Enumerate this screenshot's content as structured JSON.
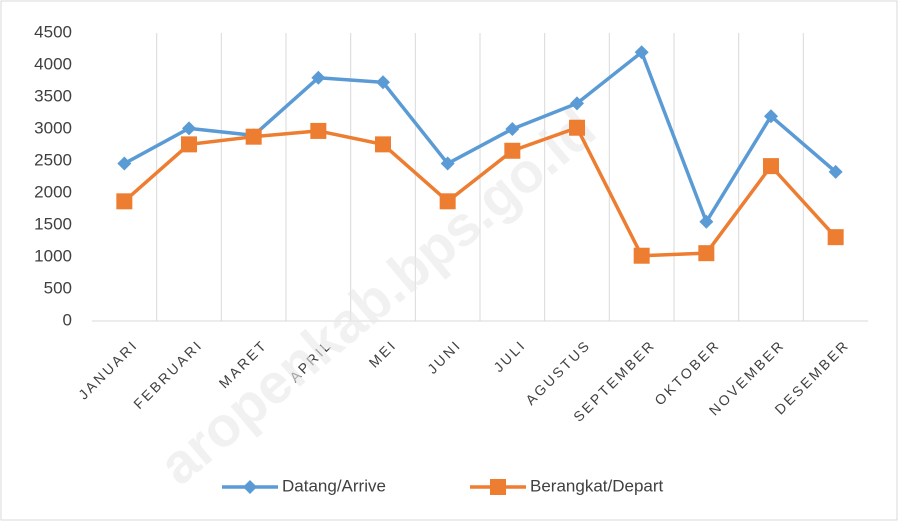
{
  "chart_data": {
    "type": "line",
    "categories": [
      "JANUARI",
      "FEBRUARI",
      "MARET",
      "APRIL",
      "MEI",
      "JUNI",
      "JULI",
      "AGUSTUS",
      "SEPTEMBER",
      "OKTOBER",
      "NOVEMBER",
      "DESEMBER"
    ],
    "series": [
      {
        "name": "Datang/Arrive",
        "color": "#5b9bd5",
        "marker": "diamond",
        "values": [
          2460,
          3010,
          2900,
          3800,
          3730,
          2460,
          3000,
          3400,
          4200,
          1550,
          3200,
          2330
        ]
      },
      {
        "name": "Berangkat/Depart",
        "color": "#ed7d31",
        "marker": "square",
        "values": [
          1870,
          2760,
          2880,
          2970,
          2760,
          1870,
          2660,
          3020,
          1020,
          1060,
          2420,
          1310
        ]
      }
    ],
    "ylim": [
      0,
      4500
    ],
    "yticks": [
      0,
      500,
      1000,
      1500,
      2000,
      2500,
      3000,
      3500,
      4000,
      4500
    ],
    "category_grid": true,
    "legend": "bottom",
    "watermark": "aropenkab.bps.go.id"
  }
}
